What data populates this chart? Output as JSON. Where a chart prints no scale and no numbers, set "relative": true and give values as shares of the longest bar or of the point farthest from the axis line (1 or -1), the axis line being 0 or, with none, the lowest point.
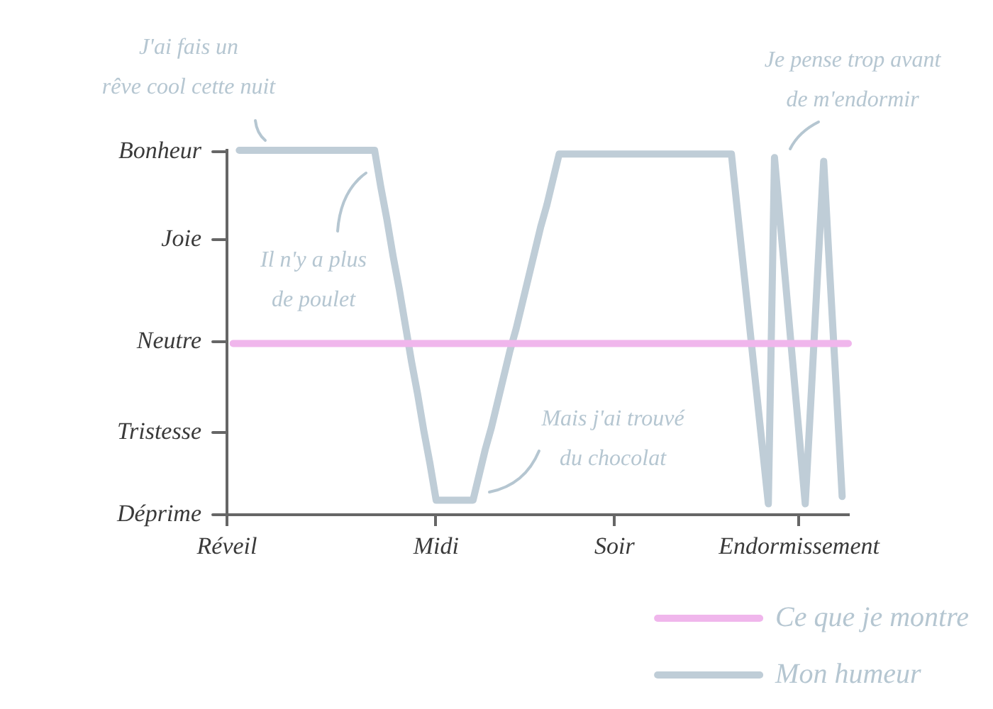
{
  "chart_data": {
    "type": "line",
    "relative": true,
    "categories": [
      "Réveil",
      null,
      null,
      null,
      null,
      null,
      null,
      null,
      null,
      null,
      null,
      null,
      null,
      null,
      null,
      null,
      null,
      null,
      null,
      null,
      null,
      null,
      null,
      null,
      null,
      null,
      null,
      null,
      null,
      null,
      null,
      null,
      null,
      null,
      "Midi",
      null,
      null,
      null,
      null,
      null,
      null,
      null,
      null,
      null,
      null,
      null,
      null,
      null,
      null,
      null,
      null,
      null,
      null,
      null,
      null,
      null,
      null,
      null,
      null,
      null,
      null,
      null,
      null,
      "Soir",
      null,
      null,
      null,
      null,
      null,
      null,
      null,
      null,
      null,
      null,
      null,
      null,
      null,
      null,
      null,
      null,
      null,
      null,
      null,
      null,
      null,
      null,
      null,
      null,
      null,
      null,
      null,
      null,
      null,
      "Endormissement",
      null,
      null,
      null,
      null,
      null,
      null,
      null,
      null
    ],
    "series": [
      {
        "name": "Ce que je montre",
        "color": "#f0b6ec",
        "values": [
          null,
          0.47,
          0.47,
          0.47,
          0.47,
          0.47,
          0.47,
          0.47,
          0.47,
          0.47,
          0.47,
          0.47,
          0.47,
          0.47,
          0.47,
          0.47,
          0.47,
          0.47,
          0.47,
          0.47,
          0.47,
          0.47,
          0.47,
          0.47,
          0.47,
          0.47,
          0.47,
          0.47,
          0.47,
          0.47,
          0.47,
          0.47,
          0.47,
          0.47,
          0.47,
          0.47,
          0.47,
          0.47,
          0.47,
          0.47,
          0.47,
          0.47,
          0.47,
          0.47,
          0.47,
          0.47,
          0.47,
          0.47,
          0.47,
          0.47,
          0.47,
          0.47,
          0.47,
          0.47,
          0.47,
          0.47,
          0.47,
          0.47,
          0.47,
          0.47,
          0.47,
          0.47,
          0.47,
          0.47,
          0.47,
          0.47,
          0.47,
          0.47,
          0.47,
          0.47,
          0.47,
          0.47,
          0.47,
          0.47,
          0.47,
          0.47,
          0.47,
          0.47,
          0.47,
          0.47,
          0.47,
          0.47,
          0.47,
          0.47,
          0.47,
          0.47,
          0.47,
          0.47,
          0.47,
          0.47,
          0.47,
          0.47,
          0.47,
          0.47,
          0.47,
          0.47,
          0.47,
          0.47,
          0.47,
          0.47,
          0.47,
          0.47
        ]
      },
      {
        "name": "Mon humeur",
        "color": "#bfcdd7",
        "values": [
          null,
          null,
          1,
          1,
          1,
          1,
          1,
          1,
          1,
          1,
          1,
          1,
          1,
          1,
          1,
          1,
          1,
          1,
          1,
          1,
          1,
          1,
          1,
          1,
          1,
          0.9,
          0.81,
          0.71,
          0.62,
          0.52,
          0.42,
          0.33,
          0.23,
          0.14,
          0.04,
          0.04,
          0.04,
          0.04,
          0.04,
          0.04,
          0.04,
          0.11,
          0.18,
          0.24,
          0.31,
          0.38,
          0.45,
          0.51,
          0.58,
          0.65,
          0.72,
          0.79,
          0.85,
          0.92,
          0.99,
          0.99,
          0.99,
          0.99,
          0.99,
          0.99,
          0.99,
          0.99,
          0.99,
          0.99,
          0.99,
          0.99,
          0.99,
          0.99,
          0.99,
          0.99,
          0.99,
          0.99,
          0.99,
          0.99,
          0.99,
          0.99,
          0.99,
          0.99,
          0.99,
          0.99,
          0.99,
          0.99,
          0.99,
          0.83,
          0.67,
          0.51,
          0.35,
          0.19,
          0.03,
          0.98,
          0.79,
          0.6,
          0.41,
          0.22,
          0.03,
          0.34,
          0.66,
          0.97,
          0.66,
          0.36,
          0.05,
          null
        ]
      }
    ],
    "annotations": [
      "J'ai fais un\nrêve cool cette nuit",
      "Il n'y a plus\nde poulet",
      "Mais j'ai trouvé\ndu chocolat",
      "Je pense trop avant\nde m'endormir",
      "Bonheur",
      "Joie",
      "Neutre",
      "Tristesse",
      "Déprime"
    ],
    "legend": "bottom right",
    "grid": false,
    "marker": "none",
    "line_style": "solid"
  }
}
